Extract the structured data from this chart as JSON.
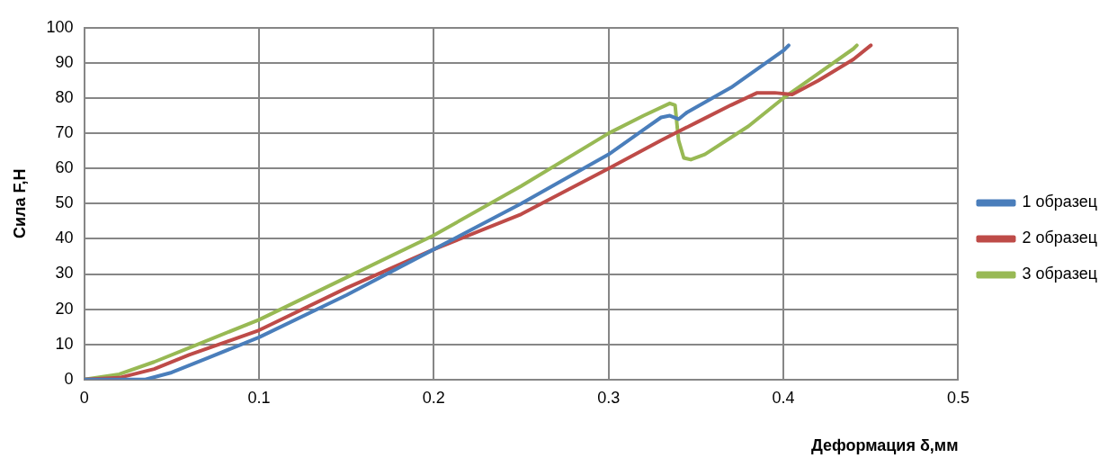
{
  "chart_data": {
    "type": "line",
    "xlabel": "Деформация δ,мм",
    "ylabel": "Сила F,Н",
    "xlim": [
      0,
      0.5
    ],
    "xticks": [
      0,
      0.1,
      0.2,
      0.3,
      0.4,
      0.5
    ],
    "ylim": [
      0,
      100
    ],
    "yticks": [
      0,
      10,
      20,
      30,
      40,
      50,
      60,
      70,
      80,
      90,
      100
    ],
    "grid": true,
    "legend": "right",
    "marker": "none",
    "line_style": "solid",
    "series": [
      {
        "name": "1 образец",
        "color": "#4a7ebb",
        "x": [
          0,
          0.02,
          0.035,
          0.05,
          0.07,
          0.1,
          0.15,
          0.2,
          0.25,
          0.3,
          0.32,
          0.33,
          0.335,
          0.34,
          0.345,
          0.37,
          0.4,
          0.403
        ],
        "values": [
          0,
          0,
          0,
          2,
          6,
          12,
          24,
          37,
          50,
          64,
          71,
          74.5,
          75,
          74,
          76,
          83,
          93.5,
          95
        ]
      },
      {
        "name": "2 образец",
        "color": "#be4b48",
        "x": [
          0,
          0.02,
          0.04,
          0.06,
          0.1,
          0.15,
          0.2,
          0.25,
          0.3,
          0.33,
          0.35,
          0.37,
          0.385,
          0.395,
          0.405,
          0.42,
          0.44,
          0.45
        ],
        "values": [
          0,
          0.5,
          3,
          7,
          14,
          26,
          37,
          47,
          60,
          68,
          73,
          78,
          81.5,
          81.5,
          81,
          85,
          91,
          95
        ]
      },
      {
        "name": "3 образец",
        "color": "#98b954",
        "x": [
          0,
          0.02,
          0.04,
          0.06,
          0.1,
          0.15,
          0.2,
          0.25,
          0.3,
          0.32,
          0.335,
          0.338,
          0.34,
          0.343,
          0.347,
          0.355,
          0.38,
          0.4,
          0.42,
          0.44,
          0.442
        ],
        "values": [
          0,
          1.5,
          5,
          9,
          17,
          29,
          41,
          55,
          70,
          75,
          78.5,
          78,
          68,
          63,
          62.5,
          64,
          72,
          80,
          87,
          94,
          95
        ]
      }
    ]
  }
}
